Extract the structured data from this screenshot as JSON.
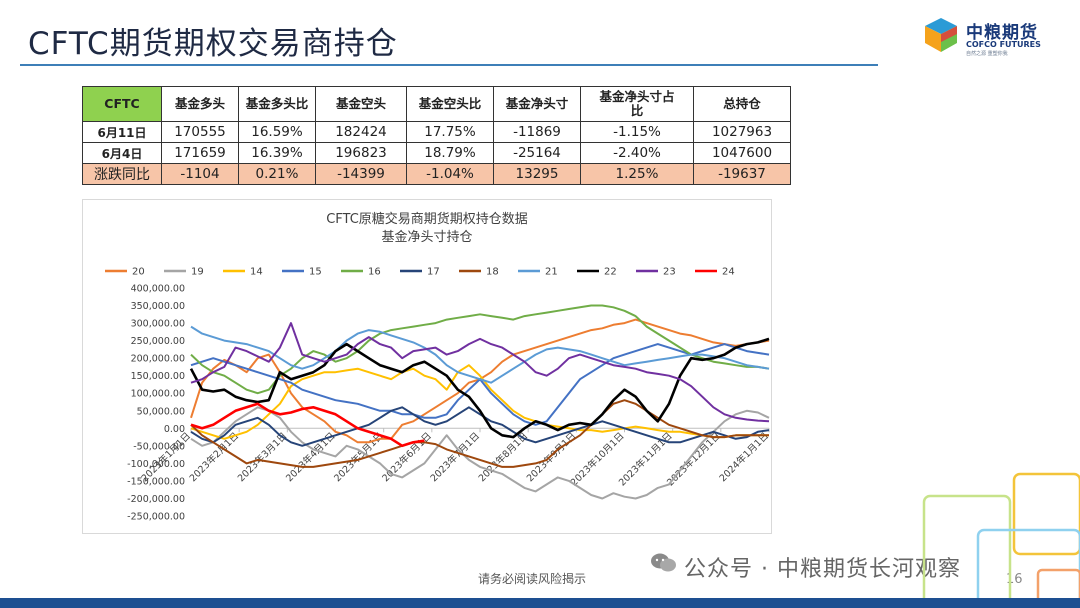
{
  "page": {
    "title": "CFTC期货期权交易商持仓",
    "footer": "请务必阅读风险揭示",
    "page_number": "16",
    "watermark": "公众号 · 中粮期货长河观察",
    "logo": {
      "cn": "中粮期货",
      "en": "COFCO FUTURES",
      "tagline": "自然之源 重塑你我"
    }
  },
  "table": {
    "corner": "CFTC",
    "headers": [
      "基金多头",
      "基金多头比",
      "基金空头",
      "基金空头比",
      "基金净头寸",
      "基金净头寸占比",
      "总持仓"
    ],
    "rows": [
      {
        "label": "6月11日",
        "cells": [
          "170555",
          "16.59%",
          "182424",
          "17.75%",
          "-11869",
          "-1.15%",
          "1027963"
        ]
      },
      {
        "label": "6月4日",
        "cells": [
          "171659",
          "16.39%",
          "196823",
          "18.79%",
          "-25164",
          "-2.40%",
          "1047600"
        ]
      },
      {
        "label": "涨跌同比",
        "cells": [
          "-1104",
          "0.21%",
          "-14399",
          "-1.04%",
          "13295",
          "1.25%",
          "-19637"
        ]
      }
    ]
  },
  "chart_data": {
    "type": "line",
    "title": "CFTC原糖交易商期货期权持仓数据",
    "subtitle": "基金净头寸持仓",
    "legend_position": "top",
    "grid": false,
    "ylim": [
      -250000,
      400000
    ],
    "y_ticks": [
      "400,000.00",
      "350,000.00",
      "300,000.00",
      "250,000.00",
      "200,000.00",
      "150,000.00",
      "100,000.00",
      "50,000.00",
      "0.00",
      "-50,000.00",
      "-100,000.00",
      "-150,000.00",
      "-200,000.00",
      "-250,000.00"
    ],
    "x_ticks": [
      "2023年1月1日",
      "2023年2月1日",
      "2023年3月1日",
      "2023年4月1日",
      "2023年5月1日",
      "2023年6月1日",
      "2023年7月1日",
      "2023年8月1日",
      "2023年9月1日",
      "2023年10月1日",
      "2023年11月1日",
      "2023年12月1日",
      "2024年1月1日"
    ],
    "n_weeks": 53,
    "series": [
      {
        "name": "20",
        "color": "#ed7d31",
        "values": [
          30000,
          130000,
          170000,
          195000,
          180000,
          160000,
          200000,
          210000,
          160000,
          100000,
          60000,
          40000,
          20000,
          -10000,
          -20000,
          -40000,
          -40000,
          -30000,
          -30000,
          10000,
          20000,
          40000,
          60000,
          80000,
          100000,
          130000,
          140000,
          160000,
          190000,
          210000,
          220000,
          230000,
          240000,
          250000,
          260000,
          270000,
          280000,
          285000,
          295000,
          300000,
          310000,
          300000,
          290000,
          280000,
          270000,
          265000,
          255000,
          245000,
          240000,
          235000,
          240000,
          245000,
          250000
        ]
      },
      {
        "name": "19",
        "color": "#a5a5a5",
        "values": [
          -30000,
          -50000,
          -40000,
          -10000,
          20000,
          40000,
          60000,
          50000,
          30000,
          -10000,
          -40000,
          -60000,
          -70000,
          -80000,
          -50000,
          -60000,
          -80000,
          -100000,
          -130000,
          -140000,
          -120000,
          -100000,
          -60000,
          -20000,
          -60000,
          -90000,
          -110000,
          -120000,
          -130000,
          -150000,
          -170000,
          -180000,
          -160000,
          -140000,
          -150000,
          -170000,
          -190000,
          -200000,
          -185000,
          -195000,
          -200000,
          -190000,
          -170000,
          -160000,
          -120000,
          -80000,
          -40000,
          -10000,
          20000,
          40000,
          50000,
          45000,
          30000
        ]
      },
      {
        "name": "14",
        "color": "#ffc000",
        "values": [
          0,
          -10000,
          -20000,
          -30000,
          -20000,
          -10000,
          10000,
          40000,
          70000,
          120000,
          140000,
          150000,
          160000,
          160000,
          165000,
          170000,
          160000,
          150000,
          140000,
          160000,
          170000,
          150000,
          140000,
          110000,
          160000,
          180000,
          150000,
          110000,
          80000,
          50000,
          30000,
          20000,
          10000,
          5000,
          0,
          -5000,
          -5000,
          -10000,
          -5000,
          0,
          5000,
          0,
          -5000,
          -10000,
          -10000,
          -15000,
          -20000,
          -25000,
          -25000,
          -20000,
          -20000,
          -20000,
          -20000
        ]
      },
      {
        "name": "15",
        "color": "#4472c4",
        "values": [
          180000,
          190000,
          200000,
          190000,
          180000,
          170000,
          160000,
          150000,
          140000,
          130000,
          110000,
          100000,
          90000,
          80000,
          75000,
          70000,
          60000,
          50000,
          50000,
          40000,
          40000,
          30000,
          30000,
          40000,
          80000,
          110000,
          140000,
          100000,
          70000,
          40000,
          20000,
          10000,
          20000,
          60000,
          100000,
          140000,
          160000,
          180000,
          200000,
          210000,
          220000,
          230000,
          240000,
          230000,
          220000,
          210000,
          220000,
          230000,
          240000,
          230000,
          220000,
          215000,
          210000
        ]
      },
      {
        "name": "16",
        "color": "#70ad47",
        "values": [
          210000,
          180000,
          160000,
          150000,
          130000,
          110000,
          100000,
          110000,
          150000,
          170000,
          200000,
          220000,
          210000,
          190000,
          200000,
          220000,
          250000,
          270000,
          280000,
          285000,
          290000,
          295000,
          300000,
          310000,
          315000,
          320000,
          325000,
          320000,
          315000,
          310000,
          320000,
          325000,
          330000,
          335000,
          340000,
          345000,
          350000,
          350000,
          345000,
          335000,
          320000,
          290000,
          270000,
          250000,
          230000,
          210000,
          200000,
          190000,
          185000,
          180000,
          175000,
          175000,
          170000
        ]
      },
      {
        "name": "17",
        "color": "#264478",
        "values": [
          -10000,
          -30000,
          -40000,
          -20000,
          10000,
          20000,
          30000,
          10000,
          -20000,
          -40000,
          -50000,
          -40000,
          -30000,
          -20000,
          -10000,
          0,
          10000,
          30000,
          50000,
          60000,
          40000,
          20000,
          10000,
          20000,
          40000,
          60000,
          40000,
          20000,
          10000,
          -10000,
          -30000,
          -40000,
          -30000,
          -20000,
          -10000,
          0,
          10000,
          20000,
          10000,
          0,
          -10000,
          -20000,
          -30000,
          -40000,
          -40000,
          -30000,
          -20000,
          -10000,
          -20000,
          -30000,
          -25000,
          -10000,
          -5000
        ]
      },
      {
        "name": "18",
        "color": "#9e480e",
        "values": [
          10000,
          -20000,
          -40000,
          -60000,
          -80000,
          -100000,
          -90000,
          -95000,
          -100000,
          -105000,
          -110000,
          -110000,
          -105000,
          -100000,
          -95000,
          -90000,
          -80000,
          -70000,
          -60000,
          -50000,
          -40000,
          -40000,
          -45000,
          -60000,
          -70000,
          -80000,
          -90000,
          -100000,
          -110000,
          -110000,
          -105000,
          -100000,
          -90000,
          -60000,
          -40000,
          -20000,
          10000,
          40000,
          70000,
          80000,
          70000,
          50000,
          30000,
          10000,
          0,
          -10000,
          -20000,
          -25000,
          -25000,
          -20000,
          -20000,
          -20000,
          -20000
        ]
      },
      {
        "name": "21",
        "color": "#5b9bd5",
        "values": [
          290000,
          270000,
          260000,
          250000,
          245000,
          240000,
          230000,
          220000,
          200000,
          180000,
          170000,
          180000,
          200000,
          220000,
          250000,
          270000,
          280000,
          275000,
          265000,
          255000,
          245000,
          230000,
          210000,
          180000,
          160000,
          150000,
          140000,
          130000,
          150000,
          170000,
          190000,
          210000,
          225000,
          230000,
          225000,
          220000,
          210000,
          200000,
          190000,
          180000,
          185000,
          190000,
          195000,
          200000,
          205000,
          210000,
          210000,
          205000,
          200000,
          190000,
          180000,
          175000,
          170000
        ]
      },
      {
        "name": "22",
        "color": "#000000",
        "values": [
          170000,
          110000,
          105000,
          110000,
          90000,
          80000,
          75000,
          80000,
          160000,
          140000,
          150000,
          160000,
          180000,
          220000,
          240000,
          220000,
          200000,
          180000,
          170000,
          160000,
          180000,
          190000,
          170000,
          150000,
          110000,
          90000,
          50000,
          0,
          -20000,
          -25000,
          0,
          20000,
          10000,
          -5000,
          10000,
          15000,
          10000,
          40000,
          80000,
          110000,
          90000,
          50000,
          20000,
          70000,
          150000,
          200000,
          195000,
          200000,
          210000,
          230000,
          240000,
          245000,
          255000
        ]
      },
      {
        "name": "23",
        "color": "#7030a0",
        "values": [
          130000,
          140000,
          160000,
          175000,
          230000,
          220000,
          205000,
          190000,
          230000,
          300000,
          210000,
          200000,
          190000,
          200000,
          210000,
          240000,
          260000,
          240000,
          230000,
          200000,
          220000,
          225000,
          230000,
          210000,
          220000,
          240000,
          255000,
          240000,
          230000,
          210000,
          190000,
          160000,
          150000,
          170000,
          200000,
          210000,
          200000,
          190000,
          180000,
          175000,
          170000,
          160000,
          155000,
          150000,
          140000,
          120000,
          90000,
          60000,
          40000,
          30000,
          25000,
          22000,
          20000
        ]
      },
      {
        "name": "24",
        "color": "#ff0000",
        "values": [
          10000,
          0,
          10000,
          30000,
          50000,
          60000,
          70000,
          50000,
          40000,
          45000,
          55000,
          60000,
          50000,
          40000,
          20000,
          0,
          -10000,
          -20000,
          -30000,
          -50000,
          -40000,
          -35000
        ]
      }
    ]
  }
}
